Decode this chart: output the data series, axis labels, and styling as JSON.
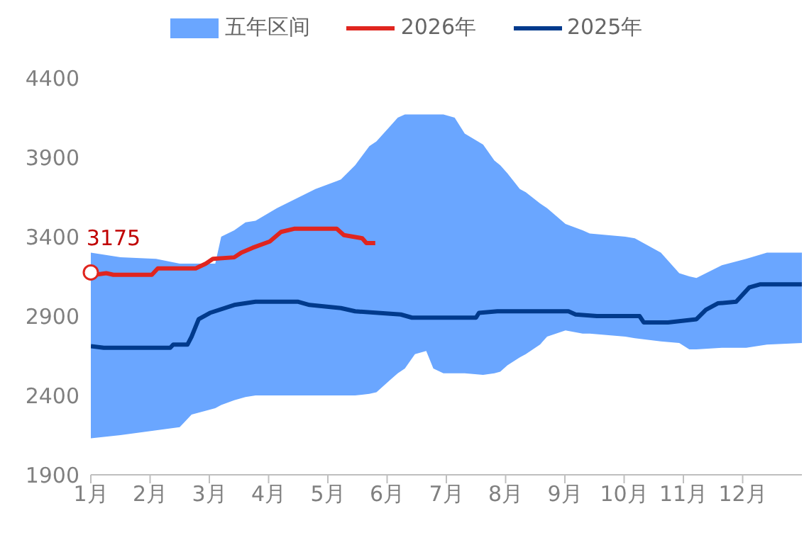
{
  "chart_data": {
    "type": "line",
    "legend": "top",
    "xlim": [
      1,
      13
    ],
    "xticks": [
      {
        "value": 1,
        "label": "1月"
      },
      {
        "value": 2,
        "label": "2月"
      },
      {
        "value": 3,
        "label": "3月"
      },
      {
        "value": 4,
        "label": "4月"
      },
      {
        "value": 5,
        "label": "5月"
      },
      {
        "value": 6,
        "label": "6月"
      },
      {
        "value": 7,
        "label": "7月"
      },
      {
        "value": 8,
        "label": "8月"
      },
      {
        "value": 9,
        "label": "9月"
      },
      {
        "value": 10,
        "label": "10月"
      },
      {
        "value": 11,
        "label": "11月"
      },
      {
        "value": 12,
        "label": "12月"
      }
    ],
    "ylim": [
      1900,
      4400
    ],
    "yticks": [
      1900,
      2400,
      2900,
      3400,
      3900,
      4400
    ],
    "grid": false,
    "marker": "none",
    "annotations": [
      {
        "text": "3175",
        "x": 1,
        "y": 3175
      }
    ],
    "series": [
      {
        "name": "五年区间",
        "type": "area",
        "color": "#6aa6ff",
        "x": [
          1,
          1.5,
          2.1,
          2.5,
          2.7,
          3.1,
          3.2,
          3.42,
          3.61,
          3.78,
          4.14,
          4.79,
          5.22,
          5.46,
          5.7,
          5.82,
          6.06,
          6.18,
          6.3,
          6.47,
          6.66,
          6.78,
          6.95,
          7.14,
          7.31,
          7.62,
          7.81,
          7.91,
          8.03,
          8.24,
          8.34,
          8.58,
          8.7,
          9.01,
          9.3,
          9.42,
          10.02,
          10.18,
          10.62,
          10.93,
          11.1,
          11.22,
          11.65,
          12.06,
          12.41,
          13
        ],
        "values": [
          null,
          null,
          null,
          null,
          null,
          null,
          null,
          null,
          null,
          null,
          null,
          null,
          null,
          null,
          null,
          null,
          null,
          null,
          null,
          null,
          null,
          null,
          null,
          null,
          null,
          null,
          null,
          null,
          null,
          null,
          null,
          null,
          null,
          null,
          null,
          null,
          null,
          null,
          null,
          null,
          null,
          null,
          null,
          null,
          null,
          null
        ],
        "lower": [
          2130,
          2150,
          2180,
          2200,
          2280,
          2320,
          2340,
          2370,
          2390,
          2400,
          2400,
          2400,
          2400,
          2400,
          2410,
          2420,
          2500,
          2540,
          2570,
          2660,
          2680,
          2570,
          2540,
          2540,
          2540,
          2530,
          2540,
          2550,
          2590,
          2640,
          2660,
          2720,
          2770,
          2810,
          2790,
          2790,
          2770,
          2760,
          2740,
          2730,
          2690,
          2690,
          2700,
          2700,
          2720,
          2730
        ],
        "upper": [
          3300,
          3270,
          3260,
          3230,
          3230,
          3230,
          3400,
          3440,
          3490,
          3500,
          3580,
          3700,
          3760,
          3850,
          3970,
          4000,
          4100,
          4150,
          4170,
          4170,
          4170,
          4170,
          4170,
          4150,
          4050,
          3980,
          3880,
          3850,
          3800,
          3700,
          3680,
          3610,
          3580,
          3480,
          3440,
          3420,
          3400,
          3390,
          3300,
          3170,
          3150,
          3140,
          3220,
          3260,
          3300,
          3300
        ]
      },
      {
        "name": "2026年",
        "color": "#e0251f",
        "x": [
          1,
          1.07,
          1.26,
          1.38,
          2.03,
          2.13,
          2.77,
          2.94,
          3.06,
          3.42,
          3.54,
          3.73,
          4.02,
          4.21,
          4.43,
          5.15,
          5.27,
          5.58,
          5.65,
          5.8
        ],
        "values": [
          3175,
          3160,
          3170,
          3160,
          3160,
          3200,
          3200,
          3230,
          3260,
          3270,
          3300,
          3330,
          3370,
          3430,
          3450,
          3450,
          3410,
          3390,
          3360,
          3360
        ]
      },
      {
        "name": "2025年",
        "color": "#003a8c",
        "x": [
          1,
          1.22,
          2.34,
          2.39,
          2.63,
          2.7,
          2.82,
          3.01,
          3.42,
          3.78,
          4.5,
          4.69,
          5.22,
          5.46,
          6.23,
          6.42,
          7.5,
          7.55,
          7.86,
          9.06,
          9.18,
          9.54,
          10.26,
          10.33,
          10.74,
          11.22,
          11.38,
          11.58,
          11.89,
          12.11,
          12.3,
          13
        ],
        "values": [
          2710,
          2700,
          2700,
          2720,
          2720,
          2770,
          2880,
          2920,
          2970,
          2990,
          2990,
          2970,
          2950,
          2930,
          2910,
          2890,
          2890,
          2920,
          2930,
          2930,
          2910,
          2900,
          2900,
          2860,
          2860,
          2880,
          2940,
          2980,
          2990,
          3080,
          3100,
          3100
        ]
      }
    ]
  }
}
